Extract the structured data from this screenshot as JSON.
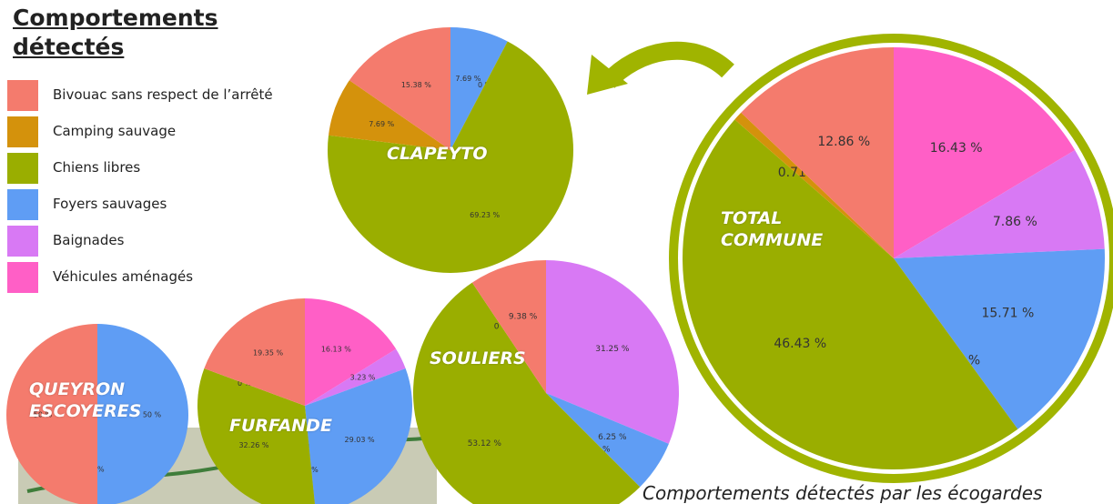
{
  "legend": {
    "title": "Comportements détectés",
    "items": [
      "Bivouac sans respect de l’arrêté",
      "Camping sauvage",
      "Chiens libres",
      "Foyers sauvages",
      "Baignades",
      "Véhicules aménagés"
    ],
    "colors": [
      "#f47b6d",
      "#d4920c",
      "#9aae00",
      "#5f9df4",
      "#d879f4",
      "#ff5fc6"
    ]
  },
  "caption": "Comportements détectés par les écogardes",
  "chart_data": [
    {
      "type": "pie",
      "title": "CLAPEYTO",
      "categories": [
        "Véhicules aménagés",
        "Foyers sauvages",
        null,
        "Chiens libres",
        "Camping sauvage",
        "Bivouac sans respect de l’arrêté"
      ],
      "values": [
        0,
        7.69,
        0,
        69.23,
        7.69,
        15.38
      ],
      "value_labels": [
        "0 %",
        "7.69 %",
        "0 %",
        "69.23 %",
        "7.69 %",
        "15.38 %"
      ]
    },
    {
      "type": "pie",
      "title": "TOTAL COMMUNE",
      "categories": [
        "Véhicules aménagés",
        "Baignades",
        "Foyers sauvages",
        null,
        "Chiens libres",
        "Camping sauvage",
        "Bivouac sans respect de l’arrêté"
      ],
      "values": [
        16.43,
        7.86,
        15.71,
        0,
        46.43,
        0.71,
        12.86
      ],
      "value_labels": [
        "16.43 %",
        "7.86 %",
        "15.71 %",
        "0 %",
        "46.43 %",
        "0.71 %",
        "12.86 %"
      ]
    },
    {
      "type": "pie",
      "title": "SOULIERS",
      "categories": [
        "Véhicules aménagés",
        "Baignades",
        "Foyers sauvages",
        null,
        "Chiens libres",
        "Camping sauvage",
        "Bivouac sans respect de l’arrêté"
      ],
      "values": [
        0,
        31.25,
        6.25,
        0,
        53.12,
        0,
        9.38
      ],
      "value_labels": [
        "0 %",
        "31.25 %",
        "6.25 %",
        "0 %",
        "53.12 %",
        "0 %",
        "9.38 %"
      ]
    },
    {
      "type": "pie",
      "title": "FURFANDE",
      "categories": [
        "Véhicules aménagés",
        "Baignades",
        "Foyers sauvages",
        null,
        "Chiens libres",
        "Camping sauvage",
        "Bivouac sans respect de l’arrêté"
      ],
      "values": [
        16.13,
        3.23,
        29.03,
        0,
        32.26,
        0,
        19.35
      ],
      "value_labels": [
        "16.13 %",
        "3.23 %",
        "29.03 %",
        "0 %",
        "32.26 %",
        "0 %",
        "19.35 %"
      ]
    },
    {
      "type": "pie",
      "title": "QUEYRON ESCOYERES",
      "categories": [
        "Véhicules aménagés",
        "Foyers sauvages",
        null,
        "Bivouac sans respect de l’arrêté"
      ],
      "values": [
        0,
        50,
        0,
        50
      ],
      "value_labels": [
        "0 %",
        "50 %",
        "0 %",
        "50 %"
      ]
    }
  ]
}
